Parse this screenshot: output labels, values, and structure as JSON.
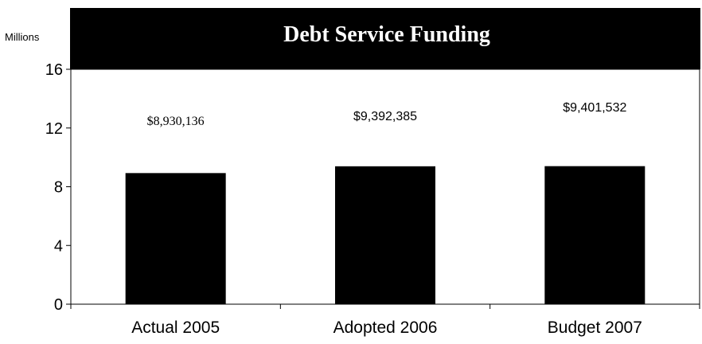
{
  "chart_data": {
    "type": "bar",
    "title": "Debt Service Funding",
    "ylabel": "Millions",
    "xlabel": "",
    "categories": [
      "Actual 2005",
      "Adopted 2006",
      "Budget 2007"
    ],
    "values": [
      8.930136,
      9.392385,
      9.401532
    ],
    "data_labels": [
      "$8,930,136",
      "$9,392,385",
      "$9,401,532"
    ],
    "ylim": [
      0,
      16
    ],
    "yticks": [
      0,
      4,
      8,
      12,
      16
    ],
    "ytick_labels": [
      "0",
      "4",
      "8",
      "12",
      "16"
    ],
    "grid": false,
    "legend": "none",
    "colors": {
      "bar": "#000000",
      "title_band": "#000000",
      "title_text": "#ffffff",
      "axis": "#000000"
    }
  }
}
